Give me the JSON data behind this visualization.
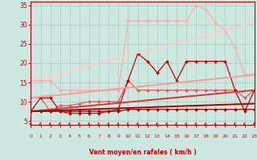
{
  "background_color": "#cce8e0",
  "grid_color": "#aaccbb",
  "xlabel": "Vent moyen/en rafales ( km/h )",
  "x_ticks": [
    0,
    1,
    2,
    3,
    4,
    5,
    6,
    7,
    8,
    9,
    10,
    11,
    12,
    13,
    14,
    15,
    16,
    17,
    18,
    19,
    20,
    21,
    22,
    23
  ],
  "ylim": [
    4.0,
    36.0
  ],
  "xlim": [
    0,
    23
  ],
  "yticks": [
    5,
    10,
    15,
    20,
    25,
    30,
    35
  ],
  "lines": [
    {
      "x": [
        0,
        1,
        2,
        3,
        4,
        5,
        6,
        7,
        8,
        9,
        10,
        11,
        12,
        13,
        14,
        15,
        16,
        17,
        18,
        19,
        20,
        21,
        22,
        23
      ],
      "y": [
        15.5,
        15.5,
        15.5,
        13,
        13,
        13,
        13,
        13,
        13,
        13,
        31,
        31,
        31,
        31,
        31,
        31,
        31,
        35,
        34,
        30.5,
        28.5,
        24,
        17,
        17
      ],
      "color": "#ffaaaa",
      "lw": 0.9,
      "marker": "D",
      "ms": 2.0
    },
    {
      "x": [
        0,
        1,
        2,
        3,
        4,
        5,
        6,
        7,
        8,
        9,
        10,
        11,
        12,
        13,
        14,
        15,
        16,
        17,
        18,
        19,
        20,
        21,
        22,
        23
      ],
      "y": [
        11,
        11,
        7.5,
        9,
        9,
        9.5,
        10,
        10,
        10,
        10,
        15.5,
        13,
        13,
        13,
        13,
        13,
        13,
        13,
        13,
        13,
        13,
        13,
        11,
        13
      ],
      "color": "#ee5555",
      "lw": 0.9,
      "marker": "D",
      "ms": 2.0
    },
    {
      "x": [
        0,
        1,
        2,
        3,
        4,
        5,
        6,
        7,
        8,
        9,
        10,
        11,
        12,
        13,
        14,
        15,
        16,
        17,
        18,
        19,
        20,
        21,
        22,
        23
      ],
      "y": [
        7.5,
        11,
        11,
        7.5,
        7,
        7,
        7,
        7,
        7.5,
        8,
        15.5,
        22.5,
        20.5,
        17.5,
        20.5,
        15.5,
        20.5,
        20.5,
        20.5,
        20.5,
        20.5,
        13,
        7.5,
        13
      ],
      "color": "#cc0000",
      "lw": 0.9,
      "marker": "D",
      "ms": 2.0
    },
    {
      "x": [
        0,
        1,
        2,
        3,
        4,
        5,
        6,
        7,
        8,
        9,
        10,
        11,
        12,
        13,
        14,
        15,
        16,
        17,
        18,
        19,
        20,
        21,
        22,
        23
      ],
      "y": [
        7.5,
        7.5,
        7.5,
        7.5,
        7.5,
        7.5,
        7.5,
        7.5,
        7.5,
        7.5,
        8,
        8,
        8,
        8,
        8,
        8,
        8,
        8,
        8,
        8,
        8,
        8,
        8,
        8
      ],
      "color": "#990000",
      "lw": 0.9,
      "marker": "D",
      "ms": 2.0
    },
    {
      "x": [
        0,
        23
      ],
      "y": [
        15.5,
        30.5
      ],
      "color": "#ffcccc",
      "lw": 1.4,
      "marker": null,
      "ms": 0
    },
    {
      "x": [
        0,
        23
      ],
      "y": [
        11,
        17.0
      ],
      "color": "#ff9999",
      "lw": 1.4,
      "marker": null,
      "ms": 0
    },
    {
      "x": [
        0,
        23
      ],
      "y": [
        7.5,
        13.0
      ],
      "color": "#dd3333",
      "lw": 1.4,
      "marker": null,
      "ms": 0
    },
    {
      "x": [
        0,
        23
      ],
      "y": [
        7.5,
        9.5
      ],
      "color": "#aa0000",
      "lw": 1.4,
      "marker": null,
      "ms": 0
    }
  ]
}
